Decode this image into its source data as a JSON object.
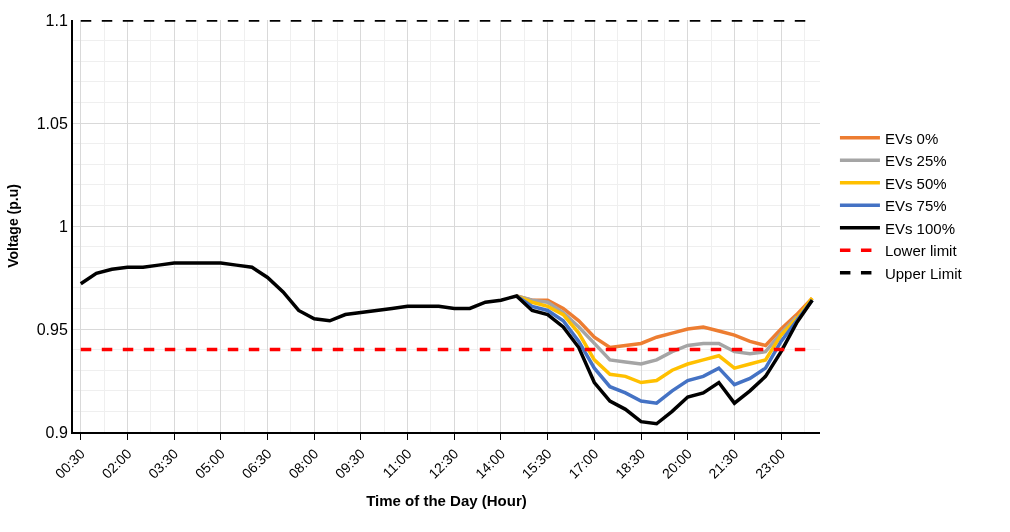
{
  "chart_data": {
    "type": "line",
    "xlabel": "Time of the Day (Hour)",
    "ylabel": "Voltage (p.u)",
    "categories": [
      "00:30",
      null,
      null,
      "02:00",
      null,
      null,
      "03:30",
      null,
      null,
      "05:00",
      null,
      null,
      "06:30",
      null,
      null,
      "08:00",
      null,
      null,
      "09:30",
      null,
      null,
      "11:00",
      null,
      null,
      "12:30",
      null,
      null,
      "14:00",
      null,
      null,
      "15:30",
      null,
      null,
      "17:00",
      null,
      null,
      "18:30",
      null,
      null,
      "20:00",
      null,
      null,
      "21:30",
      null,
      null,
      "23:00",
      null,
      null
    ],
    "series": [
      {
        "name": "EVs 0%",
        "color": "#ed7d31",
        "values": [
          null,
          null,
          null,
          null,
          null,
          null,
          null,
          null,
          null,
          null,
          null,
          null,
          null,
          null,
          null,
          null,
          null,
          null,
          null,
          null,
          null,
          null,
          null,
          null,
          null,
          null,
          null,
          null,
          0.966,
          0.964,
          0.964,
          0.96,
          0.954,
          0.946,
          0.941,
          0.942,
          0.943,
          0.946,
          0.948,
          0.95,
          0.951,
          0.949,
          0.947,
          0.944,
          0.942,
          0.95,
          0.957,
          0.965
        ]
      },
      {
        "name": "EVs 25%",
        "color": "#a5a5a5",
        "values": [
          null,
          null,
          null,
          null,
          null,
          null,
          null,
          null,
          null,
          null,
          null,
          null,
          null,
          null,
          null,
          null,
          null,
          null,
          null,
          null,
          null,
          null,
          null,
          null,
          null,
          null,
          null,
          null,
          0.966,
          0.964,
          0.963,
          0.958,
          0.951,
          0.943,
          0.935,
          0.934,
          0.933,
          0.935,
          0.939,
          0.942,
          0.943,
          0.943,
          0.939,
          0.938,
          0.939,
          0.948,
          0.956,
          null
        ]
      },
      {
        "name": "EVs 50%",
        "color": "#ffc000",
        "values": [
          null,
          null,
          null,
          null,
          null,
          null,
          null,
          null,
          null,
          null,
          null,
          null,
          null,
          null,
          null,
          null,
          null,
          null,
          null,
          null,
          null,
          null,
          null,
          null,
          null,
          null,
          null,
          null,
          0.966,
          0.963,
          0.961,
          0.957,
          0.948,
          0.935,
          0.928,
          0.927,
          0.924,
          0.925,
          0.93,
          0.933,
          0.935,
          0.937,
          0.931,
          0.933,
          0.935,
          0.947,
          0.955,
          0.965
        ]
      },
      {
        "name": "EVs 75%",
        "color": "#4472c4",
        "values": [
          null,
          null,
          null,
          null,
          null,
          null,
          null,
          null,
          null,
          null,
          null,
          null,
          null,
          null,
          null,
          null,
          null,
          null,
          null,
          null,
          null,
          null,
          null,
          null,
          null,
          null,
          null,
          null,
          0.966,
          0.961,
          0.959,
          0.954,
          0.944,
          0.931,
          0.922,
          0.919,
          0.915,
          0.914,
          0.92,
          0.925,
          0.927,
          0.931,
          0.923,
          0.926,
          0.931,
          0.944,
          0.954,
          0.964
        ]
      },
      {
        "name": "EVs 100%",
        "color": "#000000",
        "values": [
          0.972,
          0.977,
          0.979,
          0.98,
          0.98,
          0.981,
          0.982,
          0.982,
          0.982,
          0.982,
          0.981,
          0.98,
          0.975,
          0.968,
          0.959,
          0.955,
          0.954,
          0.957,
          0.958,
          0.959,
          0.96,
          0.961,
          0.961,
          0.961,
          0.96,
          0.96,
          0.963,
          0.964,
          0.966,
          0.959,
          0.957,
          0.951,
          0.941,
          0.924,
          0.915,
          0.911,
          0.905,
          0.904,
          0.91,
          0.917,
          0.919,
          0.924,
          0.914,
          0.92,
          0.927,
          0.939,
          0.953,
          0.964
        ]
      }
    ],
    "ref_lines": [
      {
        "axis": "y",
        "value": 0.94,
        "label": "Lower limit",
        "color": "#ff0000",
        "line_style": "dashed"
      },
      {
        "axis": "y",
        "value": 1.1,
        "label": "Upper Limit",
        "color": "#000000",
        "line_style": "dashed"
      }
    ],
    "ylim": [
      0.9,
      1.1
    ],
    "yticks": [
      0.9,
      0.95,
      1,
      1.05,
      1.1
    ],
    "grid": true,
    "legend": "right",
    "line_style": "solid",
    "marker": "none"
  }
}
